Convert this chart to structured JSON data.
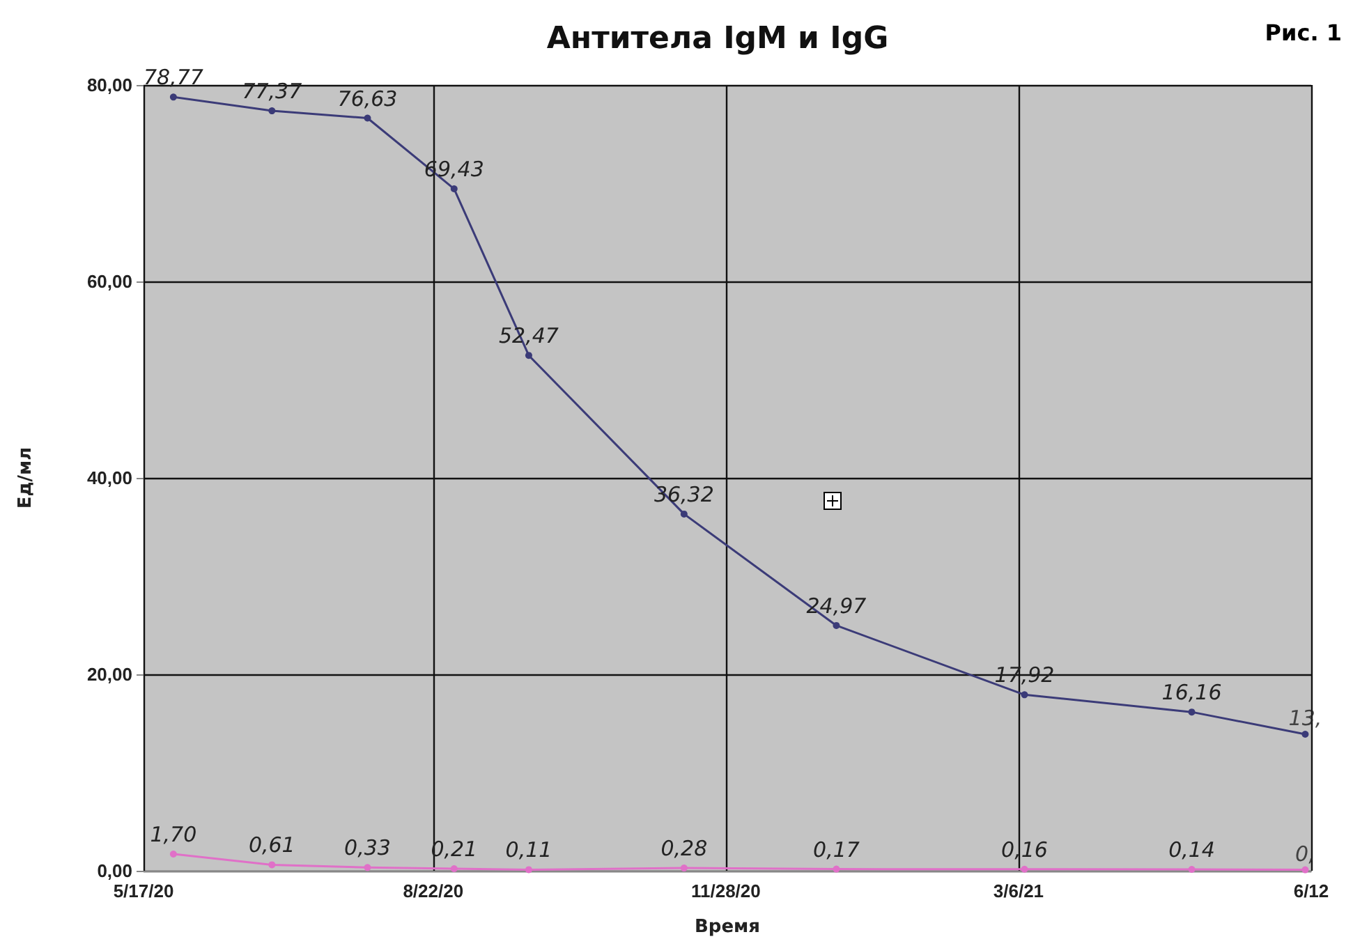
{
  "chart_data": {
    "type": "line",
    "title": "Антитела IgM и IgG",
    "xlabel": "Время",
    "ylabel": "Ед/мл",
    "annotations": [
      "Рис. 1",
      {
        "text": "13,",
        "x": "2021-06-10",
        "y": 13.9
      },
      {
        "text": "0,",
        "x": "2021-06-10",
        "y": 0.1
      }
    ],
    "x": [
      "2020-05-27",
      "2020-06-29",
      "2020-07-31",
      "2020-08-29",
      "2020-09-23",
      "2020-11-14",
      "2021-01-04",
      "2021-03-08",
      "2021-05-03",
      "2021-06-10"
    ],
    "series": [
      {
        "color": "#3b3b78",
        "values": [
          78.77,
          77.37,
          76.63,
          69.43,
          52.47,
          36.32,
          24.97,
          17.92,
          16.16,
          13.9
        ],
        "value_labels": [
          "78,77",
          "77,37",
          "76,63",
          "69,43",
          "52,47",
          "36,32",
          "24,97",
          "17,92",
          "16,16",
          null
        ]
      },
      {
        "color": "#e070c8",
        "values": [
          1.7,
          0.61,
          0.33,
          0.21,
          0.11,
          0.28,
          0.17,
          0.16,
          0.14,
          0.1
        ],
        "value_labels": [
          "1,70",
          "0,61",
          "0,33",
          "0,21",
          "0,11",
          "0,28",
          "0,17",
          "0,16",
          "0,14",
          null
        ]
      }
    ],
    "xlim": [
      "2020-05-17",
      "2021-06-12"
    ],
    "xticks": [
      {
        "value": "2020-05-17",
        "label": "5/17/20"
      },
      {
        "value": "2020-08-22",
        "label": "8/22/20"
      },
      {
        "value": "2020-11-28",
        "label": "11/28/20"
      },
      {
        "value": "2021-03-06",
        "label": "3/6/21"
      },
      {
        "value": "2021-06-12",
        "label": "6/12"
      }
    ],
    "ylim": [
      0,
      80
    ],
    "yticks": [
      {
        "value": 0,
        "label": "0,00"
      },
      {
        "value": 20,
        "label": "20,00"
      },
      {
        "value": 40,
        "label": "40,00"
      },
      {
        "value": 60,
        "label": "60,00"
      },
      {
        "value": 80,
        "label": "80,00"
      }
    ],
    "grid": true,
    "marker": "circle",
    "line_style": "solid"
  }
}
